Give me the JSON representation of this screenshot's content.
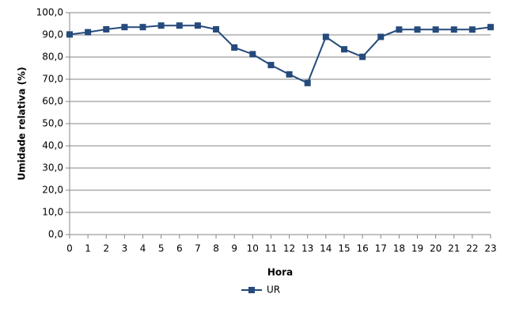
{
  "chart_data": {
    "type": "line",
    "x_label": "Hora",
    "y_label": "Umidade relativa (%)",
    "x": [
      0,
      1,
      2,
      3,
      4,
      5,
      6,
      7,
      8,
      9,
      10,
      11,
      12,
      13,
      14,
      15,
      16,
      17,
      18,
      19,
      20,
      21,
      22,
      23
    ],
    "series": [
      {
        "name": "UR",
        "color": "#254a7c",
        "values": [
          90.2,
          91.2,
          92.5,
          93.5,
          93.5,
          94.2,
          94.2,
          94.2,
          92.5,
          84.3,
          81.3,
          76.4,
          72.2,
          68.3,
          89.1,
          83.5,
          80.1,
          89.1,
          92.4,
          92.4,
          92.4,
          92.4,
          92.4,
          93.5
        ]
      }
    ],
    "xlim": [
      0,
      23
    ],
    "xticks": [
      0,
      1,
      2,
      3,
      4,
      5,
      6,
      7,
      8,
      9,
      10,
      11,
      12,
      13,
      14,
      15,
      16,
      17,
      18,
      19,
      20,
      21,
      22,
      23
    ],
    "ylim": [
      0,
      100
    ],
    "yticks": [
      {
        "value": 0,
        "label": "0,0"
      },
      {
        "value": 10,
        "label": "10,0"
      },
      {
        "value": 20,
        "label": "20,0"
      },
      {
        "value": 30,
        "label": "30,0"
      },
      {
        "value": 40,
        "label": "40,0"
      },
      {
        "value": 50,
        "label": "50,0"
      },
      {
        "value": 60,
        "label": "60,0"
      },
      {
        "value": 70,
        "label": "70,0"
      },
      {
        "value": 80,
        "label": "80,0"
      },
      {
        "value": 90,
        "label": "90,0"
      },
      {
        "value": 100,
        "label": "100,0"
      }
    ],
    "grid": true,
    "legend": "bottom"
  }
}
